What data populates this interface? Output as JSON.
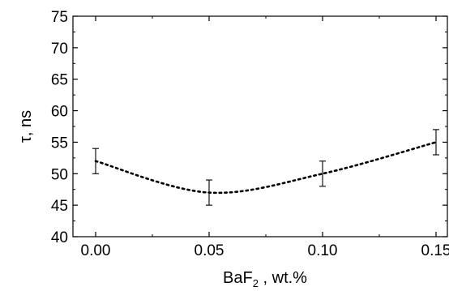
{
  "chart_data": {
    "type": "line",
    "title": "",
    "xlabel": "BaF",
    "xlabel_subscript": "2",
    "xlabel_suffix": " , wt.%",
    "ylabel": "τ, ns",
    "xlim": [
      -0.01,
      0.155
    ],
    "ylim": [
      40,
      75
    ],
    "x_ticks": [
      0.0,
      0.05,
      0.1,
      0.15
    ],
    "x_tick_labels": [
      "0.00",
      "0.05",
      "0.10",
      "0.15"
    ],
    "y_ticks": [
      40,
      45,
      50,
      55,
      60,
      65,
      70,
      75
    ],
    "y_tick_labels": [
      "40",
      "45",
      "50",
      "55",
      "60",
      "65",
      "70",
      "75"
    ],
    "grid": false,
    "line_style": "dotted",
    "series": [
      {
        "points": [
          {
            "x": 0.0,
            "y": 52,
            "err": 2
          },
          {
            "x": 0.05,
            "y": 47,
            "err": 2
          },
          {
            "x": 0.1,
            "y": 50,
            "err": 2
          },
          {
            "x": 0.15,
            "y": 55,
            "err": 2
          }
        ]
      }
    ]
  }
}
